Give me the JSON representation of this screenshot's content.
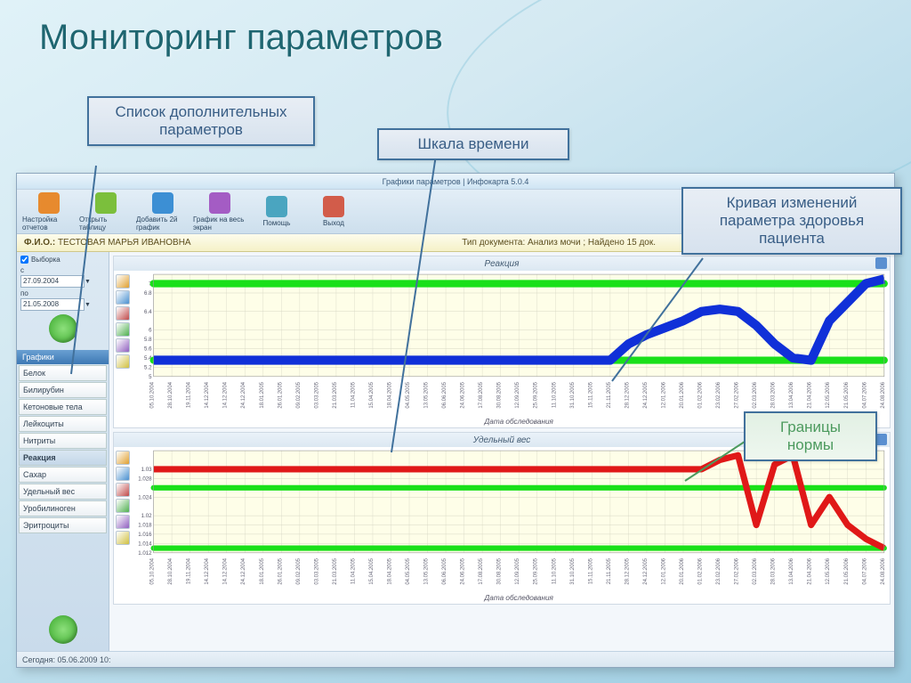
{
  "slide_title": "Мониторинг параметров",
  "callouts": {
    "params_list": "Список дополнительных параметров",
    "time_scale": "Шкала времени",
    "curve": "Кривая изменений параметра здоровья пациента",
    "norm": "Границы нормы"
  },
  "app": {
    "title": "Графики параметров | Инфокарта 5.0.4",
    "toolbar": [
      {
        "label": "Настройка отчетов",
        "color": "#e78a2e"
      },
      {
        "label": "Открыть таблицу",
        "color": "#7bbf3c"
      },
      {
        "label": "Добавить 2й график",
        "color": "#3c8fd4"
      },
      {
        "label": "График на весь экран",
        "color": "#a45cc4"
      },
      {
        "label": "Помощь",
        "color": "#4aa5c0"
      },
      {
        "label": "Выход",
        "color": "#d25c4a"
      }
    ],
    "patient_label": "Ф.И.О.:",
    "patient_name": "ТЕСТОВАЯ МАРЬЯ ИВАНОВНА",
    "doc_label": "Тип документа: Анализ мочи ; Найдено 15 док.",
    "sidebar": {
      "selection_label": "Выборка",
      "from_label": "с",
      "to_label": "по",
      "from": "27.09.2004",
      "to": "21.05.2008",
      "header": "Графики",
      "items": [
        "Белок",
        "Билирубин",
        "Кетоновые тела",
        "Лейкоциты",
        "Нитриты",
        "Реакция",
        "Сахар",
        "Удельный вес",
        "Уробилиноген",
        "Эритроциты"
      ],
      "selected": 5
    },
    "dates": [
      "05.10.2004",
      "28.10.2004",
      "19.11.2004",
      "14.12.2004",
      "14.12.2004",
      "24.12.2004",
      "18.01.2005",
      "26.01.2005",
      "09.02.2005",
      "03.03.2005",
      "21.03.2005",
      "11.04.2005",
      "15.04.2005",
      "18.04.2005",
      "04.05.2005",
      "13.05.2005",
      "06.06.2005",
      "24.06.2005",
      "17.08.2005",
      "30.08.2005",
      "12.09.2005",
      "25.09.2005",
      "11.10.2005",
      "31.10.2005",
      "15.11.2005",
      "21.11.2005",
      "28.12.2005",
      "24.12.2005",
      "12.01.2006",
      "20.01.2006",
      "01.02.2006",
      "23.02.2006",
      "27.02.2006",
      "02.03.2006",
      "28.03.2006",
      "13.04.2006",
      "21.04.2006",
      "12.05.2006",
      "21.05.2006",
      "04.07.2006",
      "24.08.2006"
    ],
    "chart1": {
      "title": "Реакция",
      "xaxis_label": "Дата обследования",
      "ylim": [
        5,
        7.2
      ],
      "yticks": [
        5,
        5.2,
        5.4,
        5.6,
        5.8,
        6,
        6.4,
        6.8,
        7
      ],
      "upper_band": {
        "y": 7.0,
        "color": "#19e019",
        "width": 8
      },
      "lower_band": {
        "y": 5.35,
        "color": "#19e019",
        "width": 8
      },
      "series": {
        "color": "#1030d8",
        "width": 10,
        "points": [
          5.35,
          5.35,
          5.35,
          5.35,
          5.35,
          5.35,
          5.35,
          5.35,
          5.35,
          5.35,
          5.35,
          5.35,
          5.35,
          5.35,
          5.35,
          5.35,
          5.35,
          5.35,
          5.35,
          5.35,
          5.35,
          5.35,
          5.35,
          5.35,
          5.35,
          5.35,
          5.7,
          5.9,
          6.05,
          6.2,
          6.4,
          6.45,
          6.4,
          6.1,
          5.7,
          5.4,
          5.35,
          6.2,
          6.6,
          7.0,
          7.1
        ]
      }
    },
    "chart2": {
      "title": "Удельный вес",
      "xaxis_label": "Дата обследования",
      "ylim": [
        1.012,
        1.034
      ],
      "yticks": [
        1.012,
        1.014,
        1.016,
        1.018,
        1.02,
        1.024,
        1.028,
        1.03
      ],
      "upper_band": {
        "y": 1.026,
        "color": "#19e019",
        "width": 6
      },
      "lower_band": {
        "y": 1.013,
        "color": "#19e019",
        "width": 6
      },
      "series": {
        "color": "#e01818",
        "width": 7,
        "points": [
          1.03,
          1.03,
          1.03,
          1.03,
          1.03,
          1.03,
          1.03,
          1.03,
          1.03,
          1.03,
          1.03,
          1.03,
          1.03,
          1.03,
          1.03,
          1.03,
          1.03,
          1.03,
          1.03,
          1.03,
          1.03,
          1.03,
          1.03,
          1.03,
          1.03,
          1.03,
          1.03,
          1.03,
          1.03,
          1.03,
          1.03,
          1.032,
          1.033,
          1.018,
          1.031,
          1.033,
          1.018,
          1.024,
          1.018,
          1.015,
          1.013
        ]
      }
    },
    "status": "Сегодня: 05.06.2009 10:"
  },
  "colors": {
    "callout_border": "#41719c",
    "callout_green": "#4c9a5e",
    "grid": "#d6d6c4",
    "plot_bg": "#fefee8"
  }
}
